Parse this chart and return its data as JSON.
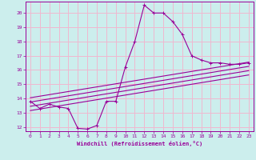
{
  "xlabel": "Windchill (Refroidissement éolien,°C)",
  "bg_color": "#cceeed",
  "grid_color": "#f0b8d0",
  "line_color": "#990099",
  "xlim": [
    -0.5,
    23.5
  ],
  "ylim": [
    11.7,
    20.8
  ],
  "xtick_vals": [
    0,
    1,
    2,
    3,
    4,
    5,
    6,
    7,
    8,
    9,
    10,
    11,
    12,
    13,
    14,
    15,
    16,
    17,
    18,
    19,
    20,
    21,
    22,
    23
  ],
  "ytick_vals": [
    12,
    13,
    14,
    15,
    16,
    17,
    18,
    19,
    20
  ],
  "main_x": [
    0,
    1,
    2,
    3,
    4,
    5,
    6,
    7,
    8,
    9,
    10,
    11,
    12,
    13,
    14,
    15,
    16,
    17,
    18,
    19,
    20,
    21,
    22,
    23
  ],
  "main_y": [
    13.8,
    13.3,
    13.6,
    13.4,
    13.3,
    11.9,
    11.85,
    12.1,
    13.8,
    13.8,
    16.2,
    18.0,
    20.55,
    20.0,
    20.0,
    19.4,
    18.5,
    17.0,
    16.7,
    16.5,
    16.5,
    16.4,
    16.4,
    16.5
  ],
  "line2_x": [
    0,
    23
  ],
  "line2_y": [
    14.05,
    16.55
  ],
  "line3_x": [
    0,
    23
  ],
  "line3_y": [
    13.75,
    16.25
  ],
  "line4_x": [
    0,
    23
  ],
  "line4_y": [
    13.45,
    15.95
  ],
  "line5_x": [
    0,
    23
  ],
  "line5_y": [
    13.15,
    15.65
  ]
}
